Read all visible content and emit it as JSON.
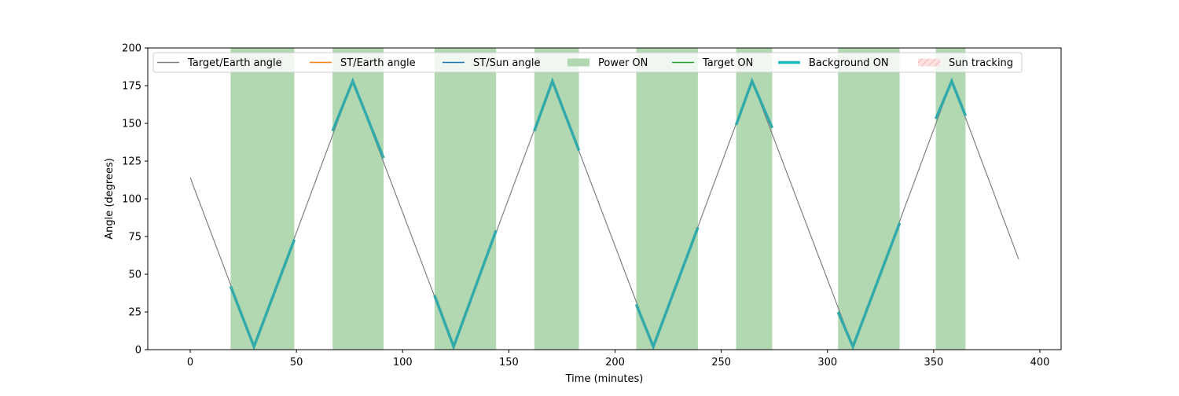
{
  "chart_data": {
    "type": "line",
    "title": "",
    "xlabel": "Time (minutes)",
    "ylabel": "Angle (degrees)",
    "xlim": [
      -20,
      410
    ],
    "ylim": [
      0,
      200
    ],
    "xticks": [
      0,
      50,
      100,
      150,
      200,
      250,
      300,
      350,
      400
    ],
    "yticks": [
      0,
      25,
      50,
      75,
      100,
      125,
      150,
      175,
      200
    ],
    "grid": false,
    "legend_position": "top",
    "legend": [
      {
        "label": "Target/Earth angle",
        "kind": "line",
        "color": "#808080"
      },
      {
        "label": "ST/Earth angle",
        "kind": "line",
        "color": "#ff7f0e"
      },
      {
        "label": "ST/Sun angle",
        "kind": "line",
        "color": "#1f77b4"
      },
      {
        "label": "Power ON",
        "kind": "patch",
        "color": "#b2d8b2"
      },
      {
        "label": "Target ON",
        "kind": "line",
        "color": "#2ca02c"
      },
      {
        "label": "Background ON",
        "kind": "thickline",
        "color": "#1ab8b8"
      },
      {
        "label": "Sun tracking",
        "kind": "hatchpatch",
        "color": "#f4a6a6"
      }
    ],
    "power_on_intervals": [
      [
        19,
        49
      ],
      [
        67,
        91
      ],
      [
        115,
        144
      ],
      [
        162,
        183
      ],
      [
        210,
        239
      ],
      [
        257,
        274
      ],
      [
        305,
        334
      ],
      [
        351,
        365
      ]
    ],
    "series": [
      {
        "name": "Target/Earth angle",
        "color": "#808080",
        "x": [
          0,
          30,
          76.5,
          124,
          170.5,
          218,
          264.5,
          312,
          358.5,
          390
        ],
        "y": [
          114,
          2,
          178,
          2,
          178,
          2,
          178,
          2,
          178,
          60
        ]
      }
    ],
    "background_on_segments": [
      {
        "x": [
          19,
          30,
          49
        ],
        "y": [
          42,
          2,
          73
        ]
      },
      {
        "x": [
          67,
          76.5,
          91
        ],
        "y": [
          145,
          178,
          127
        ]
      },
      {
        "x": [
          115,
          124,
          144
        ],
        "y": [
          36,
          2,
          79
        ]
      },
      {
        "x": [
          162,
          170.5,
          183
        ],
        "y": [
          145,
          178,
          132
        ]
      },
      {
        "x": [
          210,
          218,
          239
        ],
        "y": [
          30,
          2,
          81
        ]
      },
      {
        "x": [
          257,
          264.5,
          274
        ],
        "y": [
          149,
          178,
          147
        ]
      },
      {
        "x": [
          305,
          312,
          334
        ],
        "y": [
          25,
          2,
          84
        ]
      },
      {
        "x": [
          351,
          358.5,
          365
        ],
        "y": [
          153,
          178,
          155
        ]
      }
    ],
    "background_color": "#33aaaa"
  }
}
